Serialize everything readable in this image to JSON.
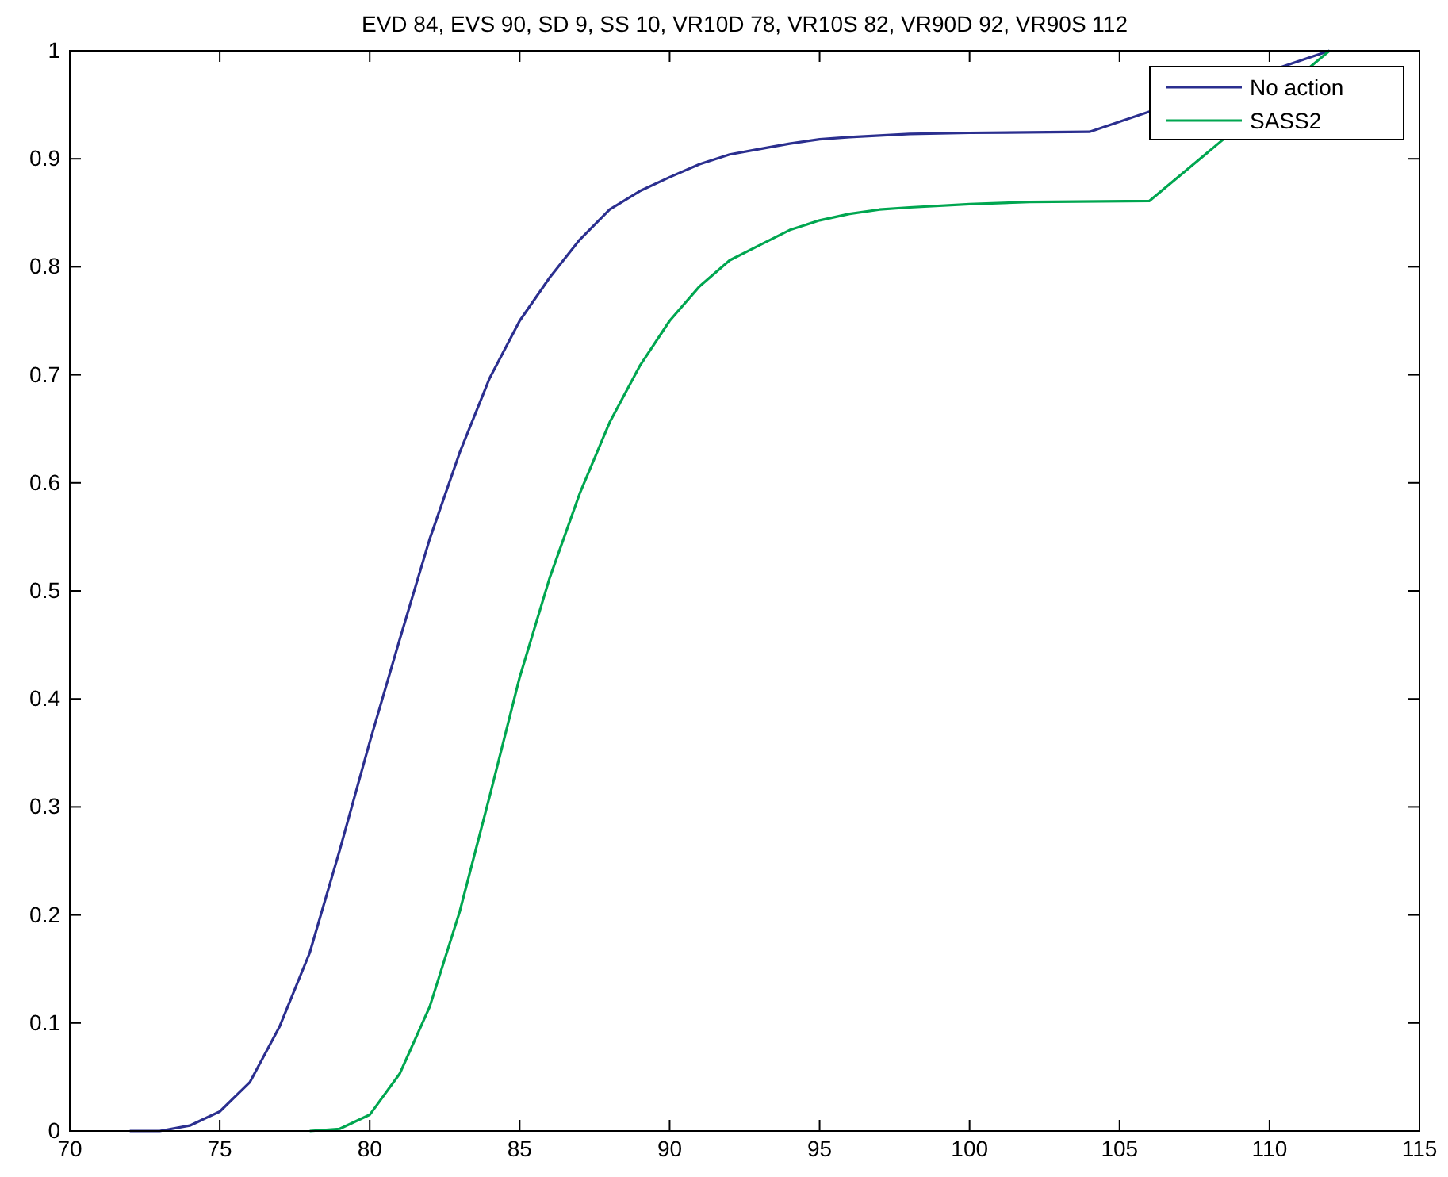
{
  "chart_data": {
    "type": "line",
    "title": "EVD 84, EVS 90, SD 9, SS 10, VR10D 78, VR10S 82, VR90D 92, VR90S 112",
    "xlim": [
      70,
      115
    ],
    "xticks": [
      70,
      75,
      80,
      85,
      90,
      95,
      100,
      105,
      110,
      115
    ],
    "ylim": [
      0,
      1
    ],
    "yticks": [
      0,
      0.1,
      0.2,
      0.3,
      0.4,
      0.5,
      0.6,
      0.7,
      0.8,
      0.9,
      1
    ],
    "grid": false,
    "legend": "top right",
    "marker": "none",
    "line_style": "solid",
    "series": [
      {
        "name": "No action",
        "color": "#2b2f8f",
        "x": [
          72,
          73,
          74,
          75,
          76,
          77,
          78,
          79,
          80,
          81,
          82,
          83,
          84,
          85,
          86,
          87,
          88,
          89,
          90,
          91,
          92,
          93,
          94,
          95,
          96,
          98,
          100,
          104,
          112
        ],
        "values": [
          0,
          0,
          0.005,
          0.018,
          0.045,
          0.097,
          0.165,
          0.26,
          0.36,
          0.455,
          0.548,
          0.628,
          0.697,
          0.75,
          0.79,
          0.825,
          0.853,
          0.87,
          0.883,
          0.895,
          0.904,
          0.909,
          0.914,
          0.918,
          0.92,
          0.923,
          0.924,
          0.925,
          1
        ]
      },
      {
        "name": "SASS2",
        "color": "#00a650",
        "x": [
          78,
          79,
          80,
          81,
          82,
          83,
          84,
          85,
          86,
          87,
          88,
          89,
          90,
          91,
          92,
          93,
          94,
          95,
          96,
          97,
          98,
          100,
          102,
          106,
          112
        ],
        "values": [
          0,
          0.002,
          0.015,
          0.053,
          0.115,
          0.203,
          0.31,
          0.42,
          0.512,
          0.59,
          0.656,
          0.708,
          0.75,
          0.782,
          0.806,
          0.82,
          0.834,
          0.843,
          0.849,
          0.853,
          0.855,
          0.858,
          0.86,
          0.861,
          1
        ]
      }
    ]
  }
}
